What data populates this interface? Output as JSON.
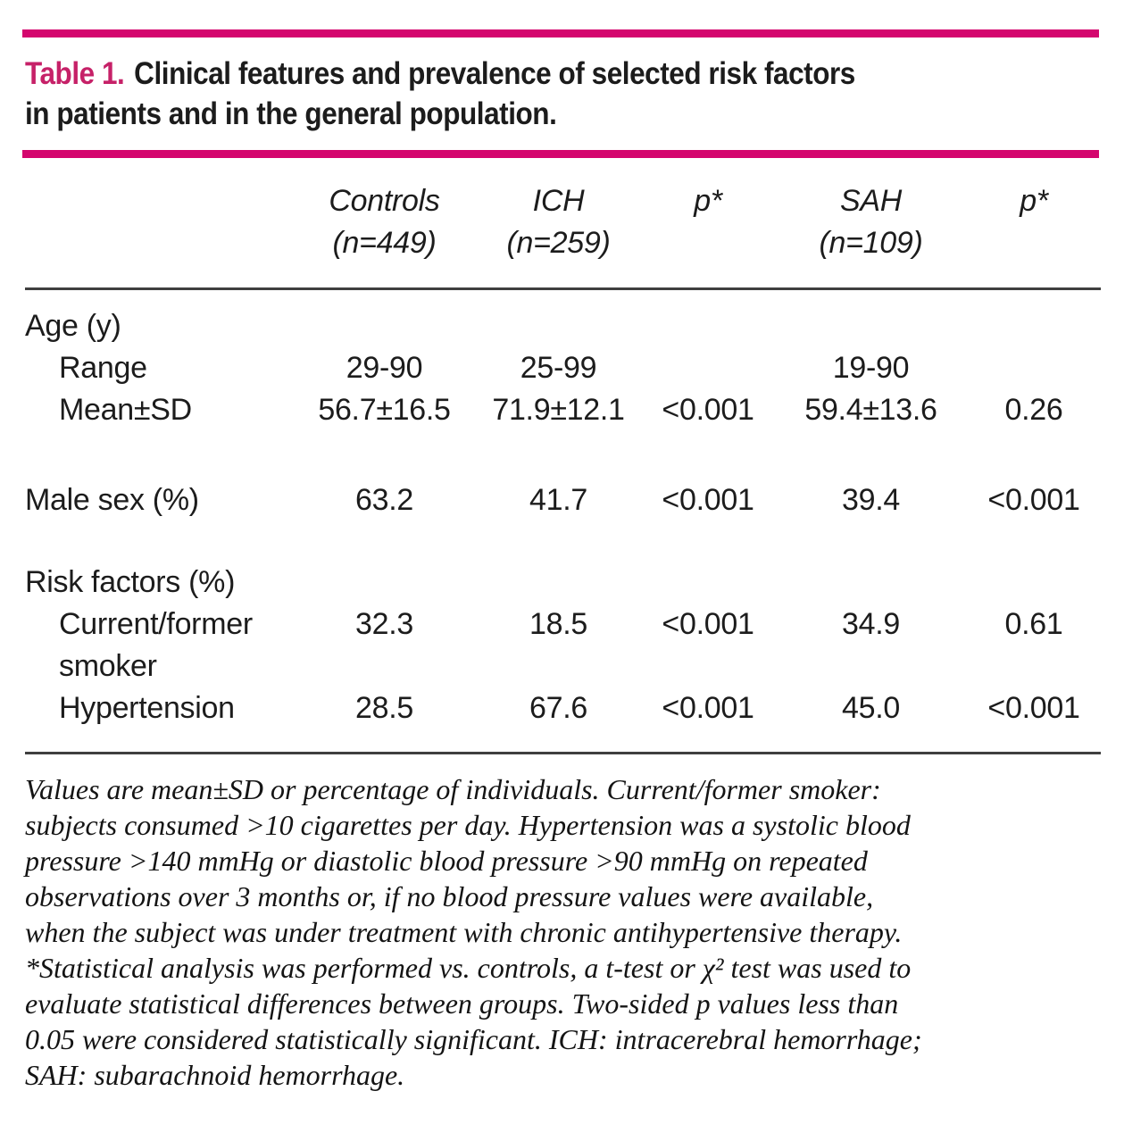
{
  "colors": {
    "accent_bar": "#d4066e",
    "title_label": "#c62168",
    "body_text": "#1c1c1c",
    "thin_rule": "#3f3f3f"
  },
  "title": {
    "label": "Table 1.",
    "line1": "Clinical features and prevalence of selected risk factors",
    "line2": "in patients and in the general population."
  },
  "table": {
    "headers": [
      {
        "name": "Controls",
        "n": "(n=449)"
      },
      {
        "name": "ICH",
        "n": "(n=259)"
      },
      {
        "name": "p*",
        "n": ""
      },
      {
        "name": "SAH",
        "n": "(n=109)"
      },
      {
        "name": "p*",
        "n": ""
      }
    ],
    "rows": [
      {
        "label": "Age (y)",
        "values": [
          "",
          "",
          "",
          "",
          ""
        ]
      },
      {
        "label": "Range",
        "values": [
          "29-90",
          "25-99",
          "",
          "19-90",
          ""
        ]
      },
      {
        "label": "Mean±SD",
        "values": [
          "56.7±16.5",
          "71.9±12.1",
          "<0.001",
          "59.4±13.6",
          "0.26"
        ]
      },
      {
        "label": "Male sex (%)",
        "values": [
          "63.2",
          "41.7",
          "<0.001",
          "39.4",
          "<0.001"
        ]
      },
      {
        "label": "Risk factors (%)",
        "values": [
          "",
          "",
          "",
          "",
          ""
        ]
      },
      {
        "label": "Current/former\nsmoker",
        "values": [
          "32.3",
          "18.5",
          "<0.001",
          "34.9",
          "0.61"
        ]
      },
      {
        "label": "Hypertension",
        "values": [
          "28.5",
          "67.6",
          "<0.001",
          "45.0",
          "<0.001"
        ]
      }
    ]
  },
  "footnote": {
    "lines": [
      "Values are mean±SD or percentage of individuals. Current/former smoker:",
      "subjects consumed >10 cigarettes per day. Hypertension was a systolic blood",
      "pressure >140 mmHg or diastolic blood pressure >90 mmHg on repeated",
      "observations over 3 months or, if no blood pressure values were available,",
      "when the subject was under treatment with chronic antihypertensive therapy.",
      "*Statistical analysis was performed vs. controls, a t-test or χ² test was used to",
      "evaluate statistical differences between groups. Two-sided p values less than",
      "0.05 were considered statistically significant. ICH: intracerebral hemorrhage;",
      "SAH: subarachnoid hemorrhage."
    ]
  }
}
